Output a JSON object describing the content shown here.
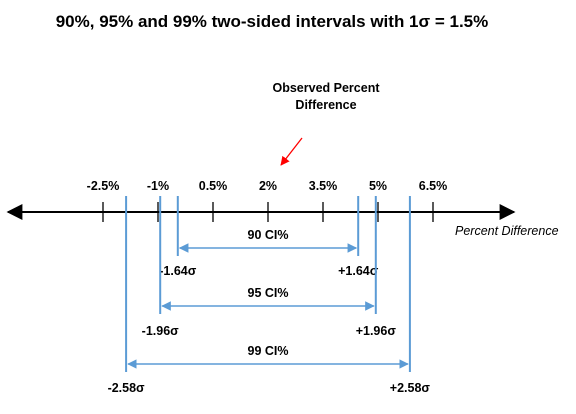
{
  "title": "90%, 95% and 99% two-sided intervals with 1σ = 1.5%",
  "annotation": {
    "line1": "Observed Percent",
    "line2": "Difference"
  },
  "axis": {
    "name": "Percent Difference",
    "ticks": [
      {
        "value": -2.5,
        "label": "-2.5%"
      },
      {
        "value": -1,
        "label": "-1%"
      },
      {
        "value": 0.5,
        "label": "0.5%"
      },
      {
        "value": 2,
        "label": "2%"
      },
      {
        "value": 3.5,
        "label": "3.5%"
      },
      {
        "value": 5,
        "label": "5%"
      },
      {
        "value": 6.5,
        "label": "6.5%"
      }
    ]
  },
  "center_value": 2,
  "sigma_value": 1.5,
  "intervals": [
    {
      "label": "90 CI%",
      "z": 1.64,
      "lower_label": "-1.64σ",
      "upper_label": "+1.64σ"
    },
    {
      "label": "95 CI%",
      "z": 1.96,
      "lower_label": "-1.96σ",
      "upper_label": "+1.96σ"
    },
    {
      "label": "99 CI%",
      "z": 2.58,
      "lower_label": "-2.58σ",
      "upper_label": "+2.58σ"
    }
  ],
  "colors": {
    "interval": "#5B9BD5",
    "arrow": "#FF0000",
    "axis": "#000000"
  }
}
